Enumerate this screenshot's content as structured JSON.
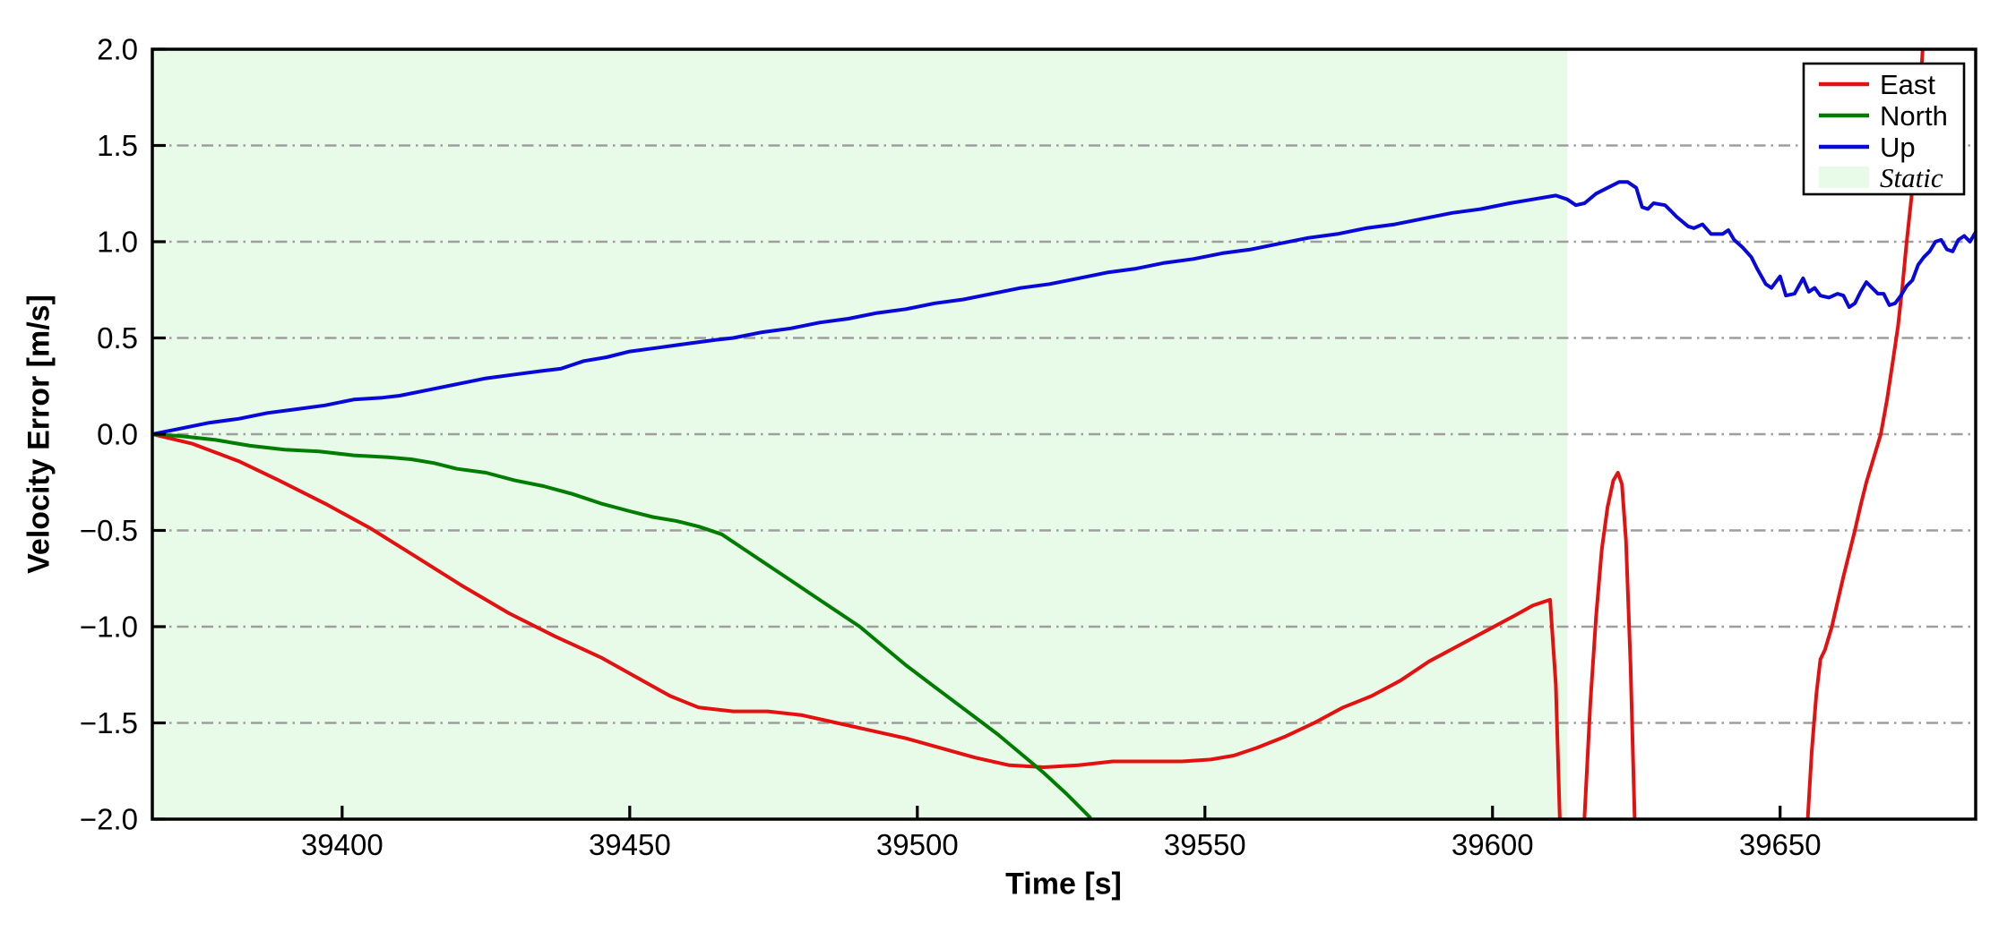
{
  "chart_data": {
    "type": "line",
    "title": "",
    "xlabel": "Time [s]",
    "ylabel": "Velocity Error [m/s]",
    "xlim": [
      39367,
      39684
    ],
    "ylim": [
      -2.0,
      2.0
    ],
    "grid": "horizontal dash-dot",
    "grid_color": "#9e9e9e",
    "background_color": "#ffffff",
    "border_color": "#000000",
    "legend_position": "upper right",
    "xticks": [
      {
        "value": 39400,
        "label": "39400"
      },
      {
        "value": 39450,
        "label": "39450"
      },
      {
        "value": 39500,
        "label": "39500"
      },
      {
        "value": 39550,
        "label": "39550"
      },
      {
        "value": 39600,
        "label": "39600"
      },
      {
        "value": 39650,
        "label": "39650"
      }
    ],
    "yticks": [
      {
        "value": 2.0,
        "label": "2.0"
      },
      {
        "value": 1.5,
        "label": "1.5"
      },
      {
        "value": 1.0,
        "label": "1.0"
      },
      {
        "value": 0.5,
        "label": "0.5"
      },
      {
        "value": 0.0,
        "label": "0.0"
      },
      {
        "value": -0.5,
        "label": "−0.5"
      },
      {
        "value": -1.0,
        "label": "−1.0"
      },
      {
        "value": -1.5,
        "label": "−1.5"
      },
      {
        "value": -2.0,
        "label": "−2.0"
      }
    ],
    "static_region": {
      "label": "Static",
      "x_start": 39367,
      "x_end": 39613,
      "color": "#e8fae8"
    },
    "legend": {
      "items": [
        {
          "label": "East",
          "type": "line",
          "color": "#e51010",
          "italic": false
        },
        {
          "label": "North",
          "type": "line",
          "color": "#007d00",
          "italic": false
        },
        {
          "label": "Up",
          "type": "line",
          "color": "#0808d8",
          "italic": false
        },
        {
          "label": "Static",
          "type": "patch",
          "color": "#e8fae8",
          "italic": true
        }
      ]
    },
    "series": [
      {
        "name": "East",
        "color": "#e51010",
        "segments": [
          [
            [
              39367,
              0
            ],
            [
              39374,
              -0.05
            ],
            [
              39382,
              -0.14
            ],
            [
              39389,
              -0.24
            ],
            [
              39397,
              -0.36
            ],
            [
              39405,
              -0.49
            ],
            [
              39413,
              -0.64
            ],
            [
              39421,
              -0.79
            ],
            [
              39429,
              -0.93
            ],
            [
              39437,
              -1.05
            ],
            [
              39445,
              -1.16
            ],
            [
              39451,
              -1.26
            ],
            [
              39457,
              -1.36
            ],
            [
              39462,
              -1.42
            ],
            [
              39468,
              -1.44
            ],
            [
              39474,
              -1.44
            ],
            [
              39480,
              -1.46
            ],
            [
              39486,
              -1.5
            ],
            [
              39492,
              -1.54
            ],
            [
              39498,
              -1.58
            ],
            [
              39504,
              -1.63
            ],
            [
              39510,
              -1.68
            ],
            [
              39516,
              -1.72
            ],
            [
              39522,
              -1.73
            ],
            [
              39528,
              -1.72
            ],
            [
              39534,
              -1.7
            ],
            [
              39540,
              -1.7
            ],
            [
              39546,
              -1.7
            ],
            [
              39551,
              -1.69
            ],
            [
              39555,
              -1.67
            ],
            [
              39559,
              -1.63
            ],
            [
              39564,
              -1.57
            ],
            [
              39569,
              -1.5
            ],
            [
              39574,
              -1.42
            ],
            [
              39579,
              -1.36
            ],
            [
              39584,
              -1.28
            ],
            [
              39589,
              -1.18
            ],
            [
              39594,
              -1.1
            ],
            [
              39599,
              -1.02
            ],
            [
              39604,
              -0.94
            ],
            [
              39607,
              -0.89
            ],
            [
              39610,
              -0.86
            ],
            [
              39611,
              -1.3
            ],
            [
              39611.8,
              -2.1
            ]
          ],
          [
            [
              39615.8,
              -2.1
            ],
            [
              39617,
              -1.4
            ],
            [
              39618,
              -0.95
            ],
            [
              39619,
              -0.6
            ],
            [
              39620,
              -0.38
            ],
            [
              39621,
              -0.24
            ],
            [
              39621.8,
              -0.2
            ],
            [
              39622.5,
              -0.26
            ],
            [
              39623.2,
              -0.55
            ],
            [
              39624,
              -1.2
            ],
            [
              39624.8,
              -2.1
            ]
          ],
          [
            [
              39654.6,
              -2.1
            ],
            [
              39655.5,
              -1.65
            ],
            [
              39656.3,
              -1.35
            ],
            [
              39657,
              -1.17
            ],
            [
              39657.8,
              -1.12
            ],
            [
              39659,
              -1.0
            ],
            [
              39660,
              -0.87
            ],
            [
              39661,
              -0.74
            ],
            [
              39662,
              -0.62
            ],
            [
              39663,
              -0.5
            ],
            [
              39664,
              -0.37
            ],
            [
              39665,
              -0.25
            ],
            [
              39666.3,
              -0.12
            ],
            [
              39667.5,
              0.0
            ],
            [
              39668.6,
              0.18
            ],
            [
              39669.6,
              0.38
            ],
            [
              39670.5,
              0.56
            ],
            [
              39671.3,
              0.78
            ],
            [
              39672,
              1.0
            ],
            [
              39672.8,
              1.22
            ],
            [
              39673.5,
              1.45
            ],
            [
              39674.2,
              1.72
            ],
            [
              39675,
              2.1
            ]
          ]
        ]
      },
      {
        "name": "North",
        "color": "#007d00",
        "segments": [
          [
            [
              39367,
              0
            ],
            [
              39372,
              -0.01
            ],
            [
              39378,
              -0.03
            ],
            [
              39384,
              -0.06
            ],
            [
              39390,
              -0.08
            ],
            [
              39396,
              -0.09
            ],
            [
              39402,
              -0.11
            ],
            [
              39408,
              -0.12
            ],
            [
              39412,
              -0.13
            ],
            [
              39416,
              -0.15
            ],
            [
              39420,
              -0.18
            ],
            [
              39425,
              -0.2
            ],
            [
              39430,
              -0.24
            ],
            [
              39435,
              -0.27
            ],
            [
              39440,
              -0.31
            ],
            [
              39445,
              -0.36
            ],
            [
              39450,
              -0.4
            ],
            [
              39454,
              -0.43
            ],
            [
              39458,
              -0.45
            ],
            [
              39462,
              -0.48
            ],
            [
              39466,
              -0.52
            ],
            [
              39470,
              -0.6
            ],
            [
              39474,
              -0.68
            ],
            [
              39478,
              -0.76
            ],
            [
              39482,
              -0.84
            ],
            [
              39486,
              -0.92
            ],
            [
              39490,
              -1.0
            ],
            [
              39494,
              -1.1
            ],
            [
              39498,
              -1.2
            ],
            [
              39502,
              -1.29
            ],
            [
              39506,
              -1.38
            ],
            [
              39510,
              -1.47
            ],
            [
              39514,
              -1.56
            ],
            [
              39518,
              -1.66
            ],
            [
              39522,
              -1.76
            ],
            [
              39526,
              -1.87
            ],
            [
              39530,
              -1.99
            ],
            [
              39531,
              -2.1
            ]
          ]
        ]
      },
      {
        "name": "Up",
        "color": "#0808d8",
        "segments": [
          [
            [
              39367,
              0
            ],
            [
              39372,
              0.03
            ],
            [
              39377,
              0.06
            ],
            [
              39382,
              0.08
            ],
            [
              39387,
              0.11
            ],
            [
              39392,
              0.13
            ],
            [
              39397,
              0.15
            ],
            [
              39402,
              0.18
            ],
            [
              39407,
              0.19
            ],
            [
              39410,
              0.2
            ],
            [
              39415,
              0.23
            ],
            [
              39420,
              0.26
            ],
            [
              39425,
              0.29
            ],
            [
              39430,
              0.31
            ],
            [
              39435,
              0.33
            ],
            [
              39438,
              0.34
            ],
            [
              39442,
              0.38
            ],
            [
              39446,
              0.4
            ],
            [
              39450,
              0.43
            ],
            [
              39455,
              0.45
            ],
            [
              39460,
              0.47
            ],
            [
              39465,
              0.49
            ],
            [
              39468,
              0.5
            ],
            [
              39473,
              0.53
            ],
            [
              39478,
              0.55
            ],
            [
              39483,
              0.58
            ],
            [
              39488,
              0.6
            ],
            [
              39493,
              0.63
            ],
            [
              39498,
              0.65
            ],
            [
              39503,
              0.68
            ],
            [
              39508,
              0.7
            ],
            [
              39513,
              0.73
            ],
            [
              39518,
              0.76
            ],
            [
              39523,
              0.78
            ],
            [
              39528,
              0.81
            ],
            [
              39533,
              0.84
            ],
            [
              39538,
              0.86
            ],
            [
              39543,
              0.89
            ],
            [
              39548,
              0.91
            ],
            [
              39553,
              0.94
            ],
            [
              39558,
              0.96
            ],
            [
              39563,
              0.99
            ],
            [
              39568,
              1.02
            ],
            [
              39573,
              1.04
            ],
            [
              39578,
              1.07
            ],
            [
              39583,
              1.09
            ],
            [
              39588,
              1.12
            ],
            [
              39593,
              1.15
            ],
            [
              39598,
              1.17
            ],
            [
              39603,
              1.2
            ],
            [
              39607,
              1.22
            ],
            [
              39611,
              1.24
            ],
            [
              39613,
              1.22
            ],
            [
              39614.5,
              1.19
            ],
            [
              39616,
              1.2
            ],
            [
              39618,
              1.25
            ],
            [
              39620,
              1.28
            ],
            [
              39622,
              1.31
            ],
            [
              39623.5,
              1.31
            ],
            [
              39625,
              1.28
            ],
            [
              39626,
              1.18
            ],
            [
              39627,
              1.17
            ],
            [
              39628,
              1.2
            ],
            [
              39630,
              1.19
            ],
            [
              39631,
              1.16
            ],
            [
              39632,
              1.13
            ],
            [
              39634,
              1.08
            ],
            [
              39635,
              1.07
            ],
            [
              39636.5,
              1.09
            ],
            [
              39638,
              1.04
            ],
            [
              39640,
              1.04
            ],
            [
              39641,
              1.06
            ],
            [
              39642,
              1.01
            ],
            [
              39643.5,
              0.97
            ],
            [
              39645,
              0.92
            ],
            [
              39646,
              0.86
            ],
            [
              39647.5,
              0.78
            ],
            [
              39648.5,
              0.76
            ],
            [
              39650,
              0.82
            ],
            [
              39651,
              0.72
            ],
            [
              39652.5,
              0.73
            ],
            [
              39654,
              0.81
            ],
            [
              39655,
              0.74
            ],
            [
              39656,
              0.76
            ],
            [
              39657,
              0.72
            ],
            [
              39658.5,
              0.71
            ],
            [
              39660,
              0.73
            ],
            [
              39661,
              0.72
            ],
            [
              39662,
              0.66
            ],
            [
              39663,
              0.68
            ],
            [
              39664,
              0.74
            ],
            [
              39665,
              0.79
            ],
            [
              39666,
              0.76
            ],
            [
              39667,
              0.73
            ],
            [
              39668,
              0.73
            ],
            [
              39669,
              0.67
            ],
            [
              39670,
              0.68
            ],
            [
              39671,
              0.72
            ],
            [
              39672,
              0.77
            ],
            [
              39673,
              0.8
            ],
            [
              39674,
              0.88
            ],
            [
              39675,
              0.92
            ],
            [
              39676,
              0.95
            ],
            [
              39677,
              1.0
            ],
            [
              39678,
              1.01
            ],
            [
              39679,
              0.96
            ],
            [
              39680,
              0.95
            ],
            [
              39681,
              1.01
            ],
            [
              39682,
              1.03
            ],
            [
              39683,
              1.0
            ],
            [
              39684,
              1.05
            ]
          ]
        ]
      }
    ]
  }
}
